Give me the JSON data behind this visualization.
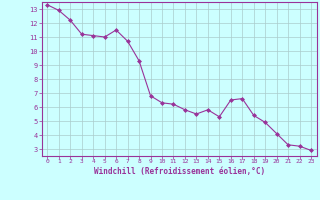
{
  "x": [
    0,
    1,
    2,
    3,
    4,
    5,
    6,
    7,
    8,
    9,
    10,
    11,
    12,
    13,
    14,
    15,
    16,
    17,
    18,
    19,
    20,
    21,
    22,
    23
  ],
  "y": [
    13.3,
    12.9,
    12.2,
    11.2,
    11.1,
    11.0,
    11.5,
    10.7,
    9.3,
    6.8,
    6.3,
    6.2,
    5.8,
    5.5,
    5.8,
    5.3,
    6.5,
    6.6,
    5.4,
    4.9,
    4.1,
    3.3,
    3.2,
    2.9
  ],
  "line_color": "#993399",
  "marker": "D",
  "marker_size": 2.0,
  "bg_color": "#ccffff",
  "grid_color": "#aacccc",
  "axis_color": "#993399",
  "xlabel": "Windchill (Refroidissement éolien,°C)",
  "xlim": [
    -0.5,
    23.5
  ],
  "ylim": [
    2.5,
    13.5
  ],
  "xticks": [
    0,
    1,
    2,
    3,
    4,
    5,
    6,
    7,
    8,
    9,
    10,
    11,
    12,
    13,
    14,
    15,
    16,
    17,
    18,
    19,
    20,
    21,
    22,
    23
  ],
  "yticks": [
    3,
    4,
    5,
    6,
    7,
    8,
    9,
    10,
    11,
    12,
    13
  ]
}
